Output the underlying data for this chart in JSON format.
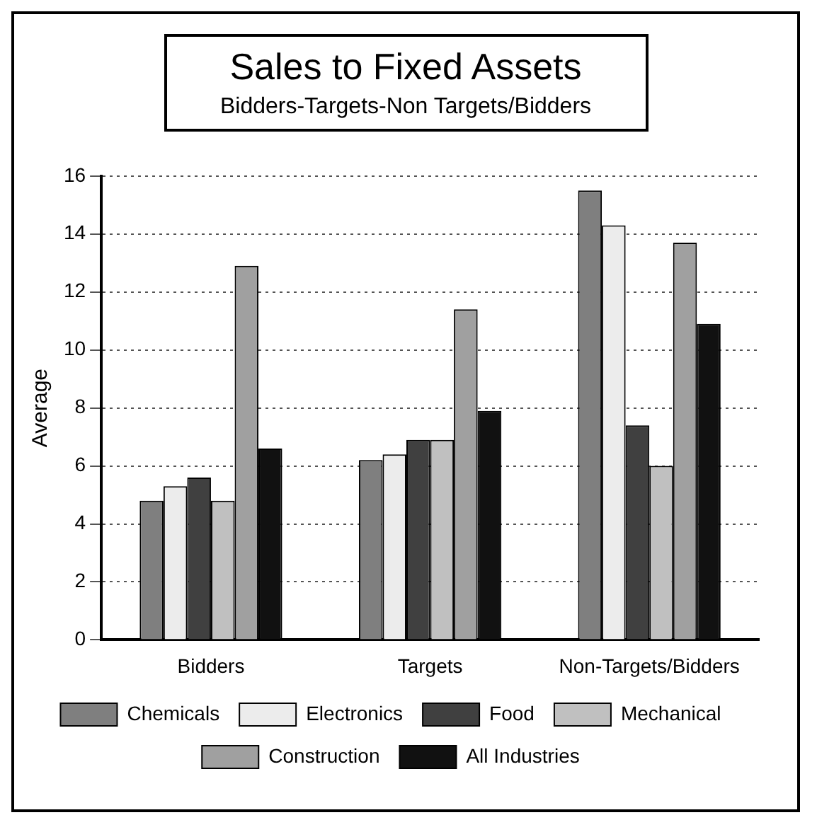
{
  "chart_data": {
    "type": "bar",
    "title": "Sales to Fixed Assets",
    "subtitle": "Bidders-Targets-Non Targets/Bidders",
    "ylabel": "Average",
    "categories": [
      "Bidders",
      "Targets",
      "Non-Targets/Bidders"
    ],
    "series": [
      {
        "name": "Chemicals",
        "color": "#7f7f7f",
        "values": [
          4.8,
          6.2,
          15.5
        ]
      },
      {
        "name": "Electronics",
        "color": "#ececec",
        "values": [
          5.3,
          6.4,
          14.3
        ]
      },
      {
        "name": "Food",
        "color": "#404040",
        "values": [
          5.6,
          6.9,
          7.4
        ]
      },
      {
        "name": "Mechanical",
        "color": "#c0c0c0",
        "values": [
          4.8,
          6.9,
          6.0
        ]
      },
      {
        "name": "Construction",
        "color": "#a0a0a0",
        "values": [
          12.9,
          11.4,
          13.7
        ]
      },
      {
        "name": "All Industries",
        "color": "#111111",
        "values": [
          6.6,
          7.9,
          10.9
        ]
      }
    ],
    "ylim": [
      0,
      16
    ],
    "yticks": [
      0,
      2,
      4,
      6,
      8,
      10,
      12,
      14,
      16
    ],
    "grid": "y",
    "legend": "bottom"
  }
}
